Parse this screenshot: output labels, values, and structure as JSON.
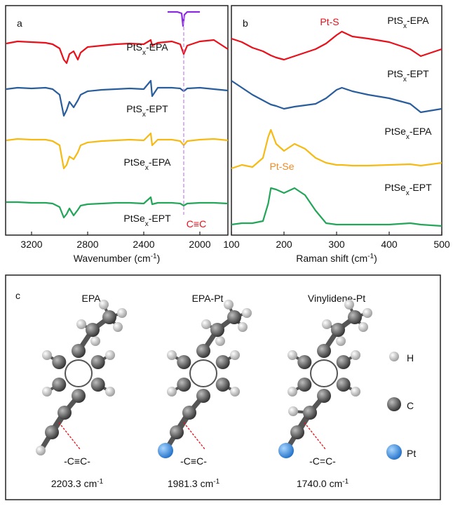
{
  "chart_data": [
    {
      "type": "line",
      "panel_label": "a",
      "x_label": [
        "Wavenumber (cm",
        "-1",
        ")"
      ],
      "x": [
        3380,
        3300,
        3200,
        3100,
        3050,
        3000,
        2970,
        2950,
        2930,
        2900,
        2870,
        2850,
        2800,
        2700,
        2600,
        2500,
        2400,
        2350,
        2340,
        2300,
        2200,
        2140,
        2115,
        2090,
        2000,
        1900,
        1800
      ],
      "xlim": [
        3385,
        1800
      ],
      "xticks": [
        3200,
        2800,
        2400,
        2000
      ],
      "ylim": [
        0,
        327
      ],
      "series": [
        {
          "name": [
            "PtS",
            "x",
            "-EPA"
          ],
          "color": "#e8101a",
          "values": [
            273,
            276,
            275,
            274,
            272,
            266,
            250,
            245,
            258,
            262,
            250,
            260,
            268,
            270,
            272,
            273,
            272,
            278,
            270,
            274,
            276,
            272,
            258,
            270,
            276,
            278,
            265
          ]
        },
        {
          "name": [
            "PtS",
            "x",
            "-EPT"
          ],
          "color": "#2a5d9c",
          "values": [
            208,
            210,
            209,
            210,
            208,
            200,
            170,
            178,
            190,
            182,
            192,
            200,
            205,
            207,
            208,
            209,
            208,
            220,
            198,
            210,
            210,
            209,
            205,
            209,
            210,
            208,
            206
          ]
        },
        {
          "name": [
            "PtSe",
            "x",
            "-EPA"
          ],
          "color": "#f5bb14",
          "values": [
            135,
            137,
            136,
            136,
            134,
            128,
            95,
            100,
            112,
            108,
            118,
            128,
            132,
            134,
            135,
            136,
            135,
            145,
            128,
            136,
            136,
            134,
            128,
            134,
            136,
            137,
            135
          ]
        },
        {
          "name": [
            "PtSe",
            "x",
            "-EPT"
          ],
          "color": "#23a55a",
          "values": [
            47,
            47,
            46,
            46,
            45,
            40,
            25,
            30,
            38,
            28,
            36,
            42,
            44,
            45,
            46,
            46,
            45,
            54,
            44,
            46,
            46,
            45,
            42,
            45,
            46,
            46,
            45
          ]
        }
      ],
      "inset": {
        "color": "#8a2be2",
        "x": [
          2230,
          2160,
          2130,
          2120,
          2110,
          2090,
          2000
        ],
        "values": [
          318,
          318,
          316,
          298,
          314,
          318,
          318
        ]
      },
      "annotation": "C≡C"
    },
    {
      "type": "line",
      "panel_label": "b",
      "x_label": [
        "Raman shift (cm",
        "-1",
        ")"
      ],
      "x": [
        100,
        120,
        140,
        160,
        170,
        175,
        185,
        200,
        220,
        240,
        260,
        280,
        300,
        310,
        330,
        360,
        400,
        440,
        460,
        500
      ],
      "xlim": [
        100,
        500
      ],
      "xticks": [
        100,
        200,
        300,
        400,
        500
      ],
      "ylim": [
        0,
        327
      ],
      "series": [
        {
          "name": [
            "PtS",
            "x",
            "-EPA"
          ],
          "color": "#e8101a",
          "values": [
            280,
            275,
            267,
            262,
            258,
            256,
            253,
            250,
            255,
            260,
            265,
            273,
            285,
            290,
            283,
            280,
            275,
            265,
            255,
            265
          ]
        },
        {
          "name": [
            "PtS",
            "x",
            "-EPT"
          ],
          "color": "#2a5d9c",
          "values": [
            220,
            210,
            200,
            192,
            188,
            186,
            184,
            180,
            183,
            185,
            187,
            195,
            207,
            210,
            205,
            200,
            195,
            187,
            175,
            180
          ]
        },
        {
          "name": [
            "PtSe",
            "x",
            "-EPA"
          ],
          "color": "#f5bb14",
          "values": [
            95,
            100,
            97,
            110,
            140,
            150,
            130,
            120,
            130,
            123,
            110,
            103,
            100,
            100,
            99,
            99,
            100,
            101,
            99,
            103
          ]
        },
        {
          "name": [
            "PtSe",
            "x",
            "-EPT"
          ],
          "color": "#23a55a",
          "values": [
            15,
            17,
            17,
            20,
            45,
            67,
            65,
            60,
            67,
            57,
            35,
            17,
            15,
            15,
            15,
            15,
            15,
            17,
            15,
            13
          ]
        }
      ],
      "annotations": [
        "Pt-S",
        "Pt-Se"
      ]
    }
  ],
  "structures": {
    "panel_label": "c",
    "molecules": [
      {
        "title": "EPA",
        "bond": "-C≡C-",
        "frequency": [
          "2203.3 cm",
          "-1"
        ]
      },
      {
        "title": "EPA-Pt",
        "bond": "-C≡C-",
        "frequency": [
          "1981.3 cm",
          "-1"
        ]
      },
      {
        "title": "Vinylidene-Pt",
        "bond": "-C=C-",
        "frequency": [
          "1740.0 cm",
          "-1"
        ]
      }
    ],
    "legend": [
      "H",
      "C",
      "Pt"
    ]
  }
}
